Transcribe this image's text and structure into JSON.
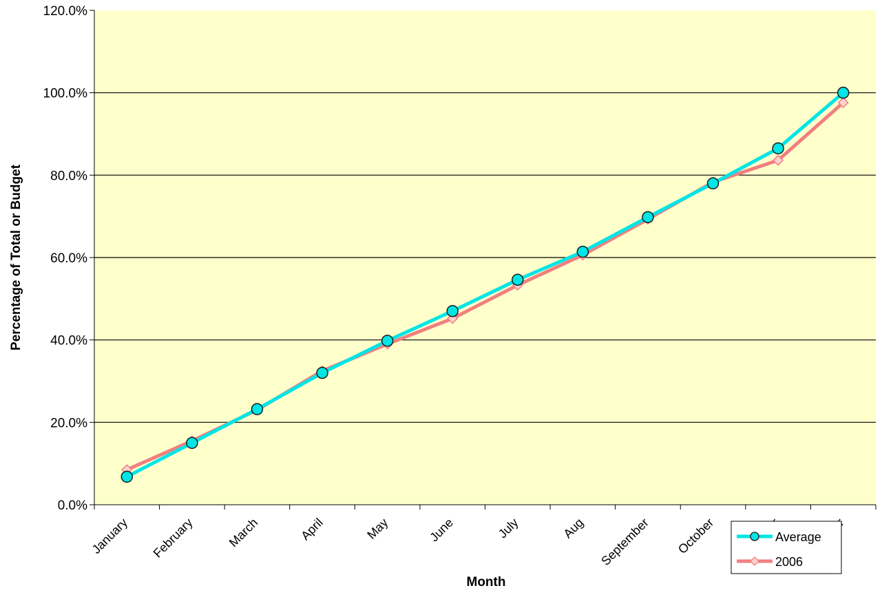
{
  "chart_data": {
    "type": "line",
    "title": "",
    "xlabel": "Month",
    "ylabel": "Percentage of Total or Budget",
    "categories": [
      "January",
      "February",
      "March",
      "April",
      "May",
      "June",
      "July",
      "Aug",
      "September",
      "October",
      "November",
      "December"
    ],
    "ylim": [
      0,
      120
    ],
    "yticks": [
      "0.0%",
      "20.0%",
      "40.0%",
      "60.0%",
      "80.0%",
      "100.0%",
      "120.0%"
    ],
    "grid": true,
    "legend_position": "bottom-right",
    "plot_background": "#ffffcc",
    "series": [
      {
        "name": "Average",
        "color": "#00e5e5",
        "marker": "circle",
        "values": [
          6.8,
          15.0,
          23.2,
          32.0,
          39.8,
          47.0,
          54.6,
          61.4,
          69.8,
          78.0,
          86.5,
          100.0
        ]
      },
      {
        "name": "2006",
        "color": "#f08080",
        "marker": "diamond",
        "values": [
          8.5,
          15.5,
          23.0,
          32.5,
          39.0,
          45.2,
          53.3,
          60.6,
          69.3,
          78.3,
          83.6,
          97.6
        ]
      }
    ]
  }
}
